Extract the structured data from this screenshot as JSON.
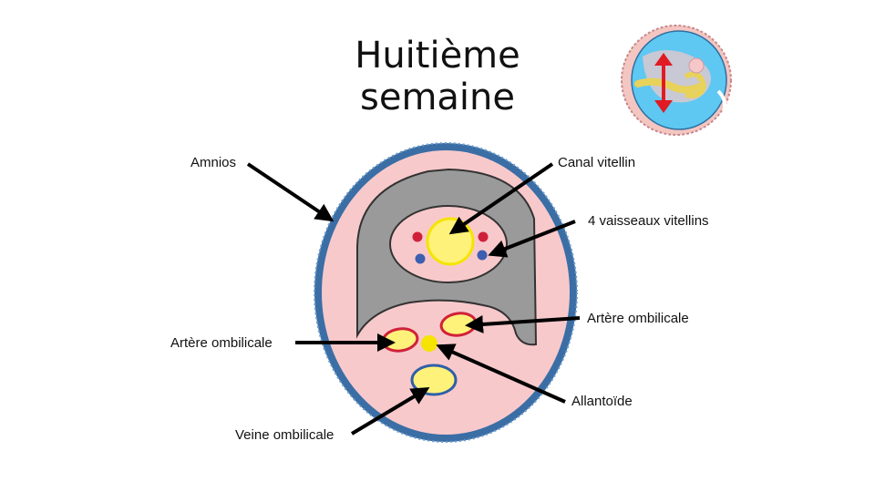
{
  "slide": {
    "title": "Huitième semaine"
  },
  "labels": {
    "amnios": "Amnios",
    "canal_vitellin": "Canal vitellin",
    "vaisseaux_vitellins": "4 vaisseaux vitellins",
    "artere_ombilicale_right": "Artère ombilicale",
    "artere_ombilicale_left": "Artère ombilicale",
    "allantoide": "Allantoïde",
    "veine_ombilicale": "Veine ombilicale"
  },
  "colors": {
    "amnion_outer": "#3a6ea5",
    "tissue_pink": "#f8c9cb",
    "cavity_gray": "#9a9a9a",
    "yolk_yellow": "#fff27a",
    "artery_red": "#d0213a",
    "vein_blue": "#2f5fa8",
    "arrow_black": "#000000",
    "indicator_red": "#e01b24",
    "thumbnail_blue": "#5ec8f2"
  }
}
